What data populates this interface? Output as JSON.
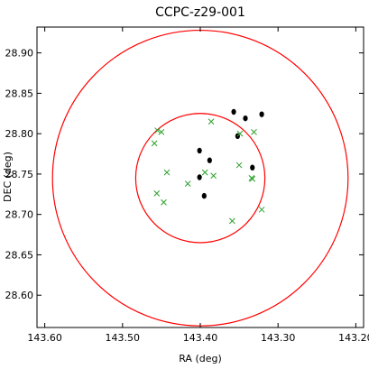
{
  "chart_data": {
    "type": "scatter",
    "title": "CCPC-z29-001",
    "xlabel": "RA (deg)",
    "ylabel": "DEC (deg)",
    "x_inverted": true,
    "xlim": [
      143.61,
      143.19
    ],
    "ylim": [
      28.56,
      28.932
    ],
    "xticks": [
      143.6,
      143.5,
      143.4,
      143.3,
      143.2
    ],
    "xtick_labels": [
      "143.60",
      "143.50",
      "143.40",
      "143.30",
      "143.20"
    ],
    "yticks": [
      28.6,
      28.65,
      28.7,
      28.75,
      28.8,
      28.85,
      28.9
    ],
    "ytick_labels": [
      "28.60",
      "28.65",
      "28.70",
      "28.75",
      "28.80",
      "28.85",
      "28.90"
    ],
    "grid": false,
    "colors": {
      "circle": "#ff0000",
      "cross": "#2ca02c",
      "dot": "#000000"
    },
    "circles": [
      {
        "center": [
          143.4,
          28.745
        ],
        "radius_dec": 0.08
      },
      {
        "center": [
          143.4,
          28.745
        ],
        "radius_dec": 0.183
      }
    ],
    "series": [
      {
        "marker": "dot",
        "points": [
          [
            143.357,
            28.827
          ],
          [
            143.342,
            28.819
          ],
          [
            143.321,
            28.824
          ],
          [
            143.352,
            28.797
          ],
          [
            143.401,
            28.779
          ],
          [
            143.388,
            28.767
          ],
          [
            143.401,
            28.746
          ],
          [
            143.395,
            28.723
          ],
          [
            143.333,
            28.758
          ]
        ]
      },
      {
        "marker": "x",
        "points": [
          [
            143.455,
            28.804
          ],
          [
            143.45,
            28.802
          ],
          [
            143.459,
            28.788
          ],
          [
            143.386,
            28.815
          ],
          [
            143.349,
            28.8
          ],
          [
            143.331,
            28.802
          ],
          [
            143.443,
            28.752
          ],
          [
            143.394,
            28.752
          ],
          [
            143.383,
            28.748
          ],
          [
            143.35,
            28.761
          ],
          [
            143.334,
            28.745
          ],
          [
            143.333,
            28.744
          ],
          [
            143.416,
            28.738
          ],
          [
            143.456,
            28.726
          ],
          [
            143.447,
            28.715
          ],
          [
            143.359,
            28.692
          ],
          [
            143.321,
            28.706
          ]
        ]
      }
    ]
  }
}
